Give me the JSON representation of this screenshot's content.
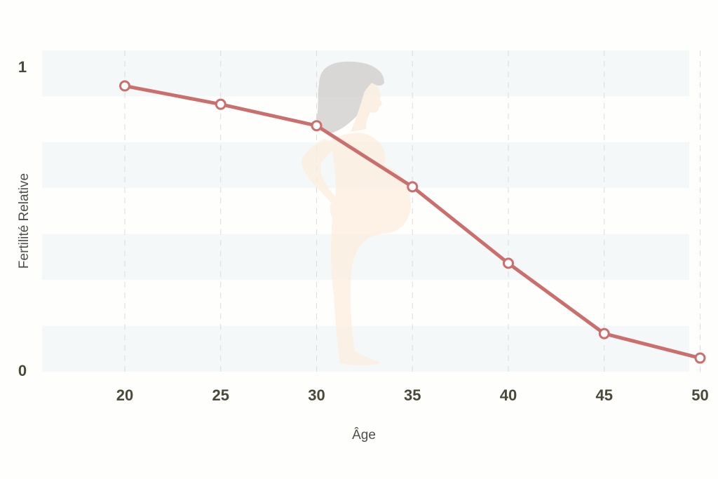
{
  "chart_data": {
    "type": "line",
    "title": "",
    "xlabel": "Âge",
    "ylabel": "Fertilité Relative",
    "x": [
      20,
      25,
      30,
      35,
      40,
      45,
      50
    ],
    "series": [
      {
        "values": [
          0.93,
          0.87,
          0.8,
          0.6,
          0.35,
          0.12,
          0.04
        ]
      }
    ],
    "xticks": [
      "20",
      "25",
      "30",
      "35",
      "40",
      "45",
      "50"
    ],
    "yticks": [
      "0",
      "1"
    ],
    "xlim": [
      15,
      50
    ],
    "ylim": [
      0,
      1
    ],
    "grid": "vertical dashed lines with alternating horizontal bands",
    "legend": "none",
    "colors": {
      "line": "#cb6e6c",
      "marker_fill": "#ffffff",
      "band": "#f4f8f9",
      "grid": "#dcdcdc",
      "tick_text": "#4a4838",
      "illustration": "pregnant-woman-silhouette"
    }
  }
}
